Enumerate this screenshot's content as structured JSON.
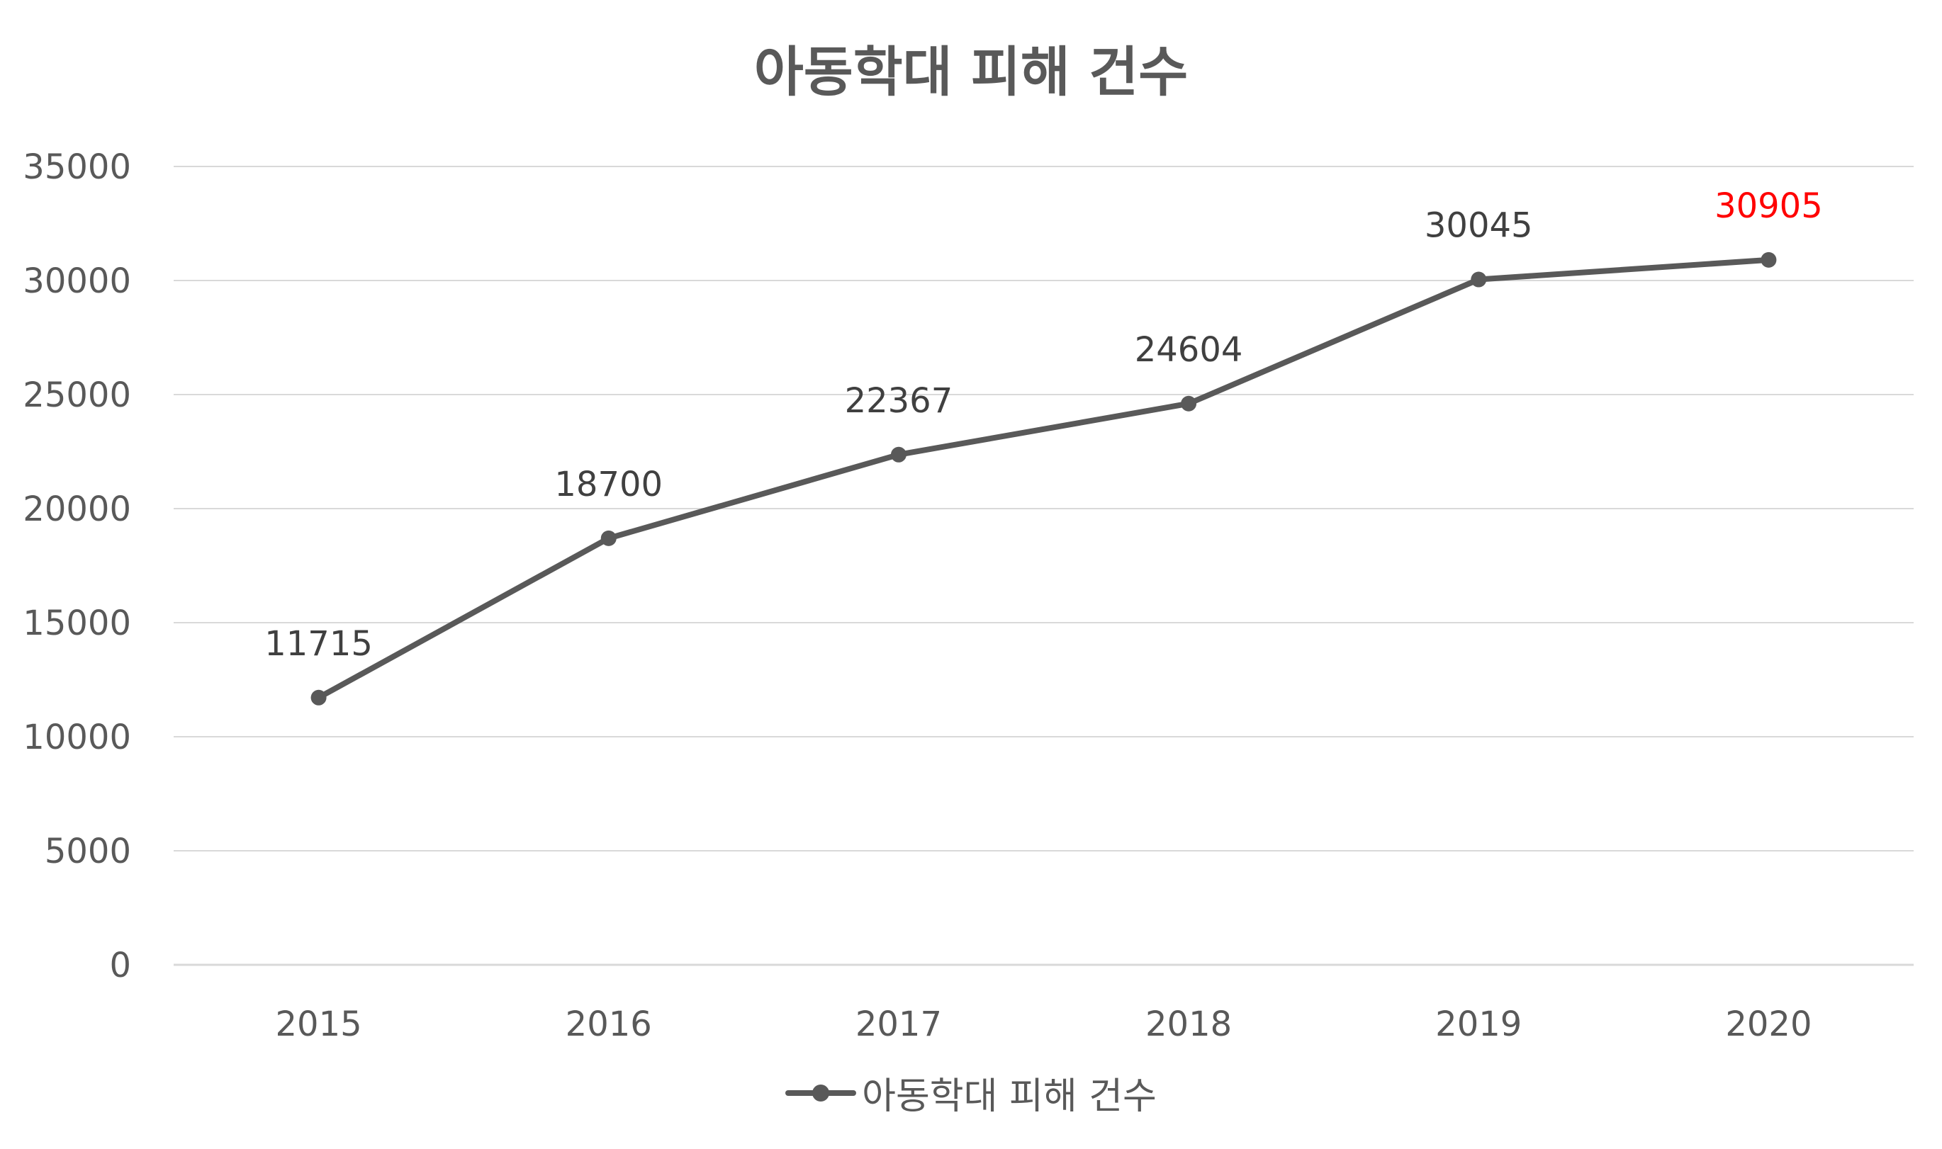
{
  "chart_data": {
    "type": "line",
    "title": "아동학대 피해 건수",
    "categories": [
      "2015",
      "2016",
      "2017",
      "2018",
      "2019",
      "2020"
    ],
    "series": [
      {
        "name": "아동학대 피해 건수",
        "values": [
          11715,
          18700,
          22367,
          24604,
          30045,
          30905
        ],
        "color": "#595959",
        "data_labels": [
          "11715",
          "18700",
          "22367",
          "24604",
          "30045",
          "30905"
        ],
        "label_colors": [
          "#404040",
          "#404040",
          "#404040",
          "#404040",
          "#404040",
          "#ff0000"
        ]
      }
    ],
    "yticks": [
      "0",
      "5000",
      "10000",
      "15000",
      "20000",
      "25000",
      "30000",
      "35000"
    ],
    "ylim": [
      0,
      35000
    ],
    "grid": true,
    "legend": "bottom",
    "gridline_color": "#d9d9d9"
  }
}
